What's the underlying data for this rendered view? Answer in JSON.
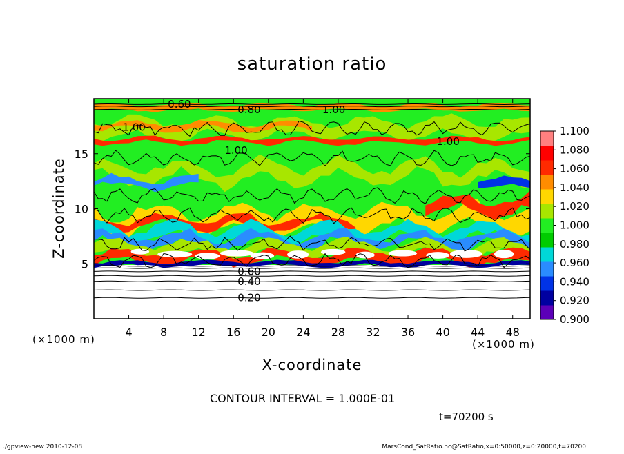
{
  "chart_data": {
    "type": "heatmap",
    "title": "saturation ratio",
    "xlabel": "X-coordinate",
    "ylabel": "Z-coordinate",
    "x_unit": "(×1000 m)",
    "y_unit": "(×1000 m)",
    "xlim": [
      0,
      50
    ],
    "ylim": [
      0,
      20
    ],
    "x_ticks": [
      4,
      8,
      12,
      16,
      20,
      24,
      28,
      32,
      36,
      40,
      44,
      48
    ],
    "y_ticks": [
      5,
      10,
      15
    ],
    "colorbar": {
      "min": 0.9,
      "max": 1.1,
      "ticks": [
        "0.900",
        "0.920",
        "0.940",
        "0.960",
        "0.980",
        "1.000",
        "1.020",
        "1.040",
        "1.060",
        "1.080",
        "1.100"
      ],
      "colors": [
        "#5c00b8",
        "#0000a0",
        "#0033e6",
        "#2a8cff",
        "#00d8d8",
        "#00cc00",
        "#22ee22",
        "#a8e600",
        "#ffd700",
        "#ff8c00",
        "#ff2a00",
        "#ff0000",
        "#ff8080"
      ]
    },
    "contour_interval": "CONTOUR INTERVAL = 1.000E-01",
    "contour_labels": [
      {
        "text": "0.60",
        "x": 9.8,
        "z": 19.5
      },
      {
        "text": "0.80",
        "x": 17.8,
        "z": 19.0
      },
      {
        "text": "1.00",
        "x": 27.5,
        "z": 19.0
      },
      {
        "text": "1.00",
        "x": 4.6,
        "z": 17.4
      },
      {
        "text": "1.00",
        "x": 40.6,
        "z": 16.1
      },
      {
        "text": "1.00",
        "x": 16.3,
        "z": 15.3
      },
      {
        "text": "0.60",
        "x": 17.8,
        "z": 4.3
      },
      {
        "text": "0.40",
        "x": 17.8,
        "z": 3.4
      },
      {
        "text": "0.20",
        "x": 17.8,
        "z": 1.9
      }
    ],
    "annotation_time": "t=70200 s"
  },
  "footer": {
    "left": "./gpview-new  2010-12-08",
    "right": "MarsCond_SatRatio.nc@SatRatio,x=0:50000,z=0:20000,t=70200"
  }
}
